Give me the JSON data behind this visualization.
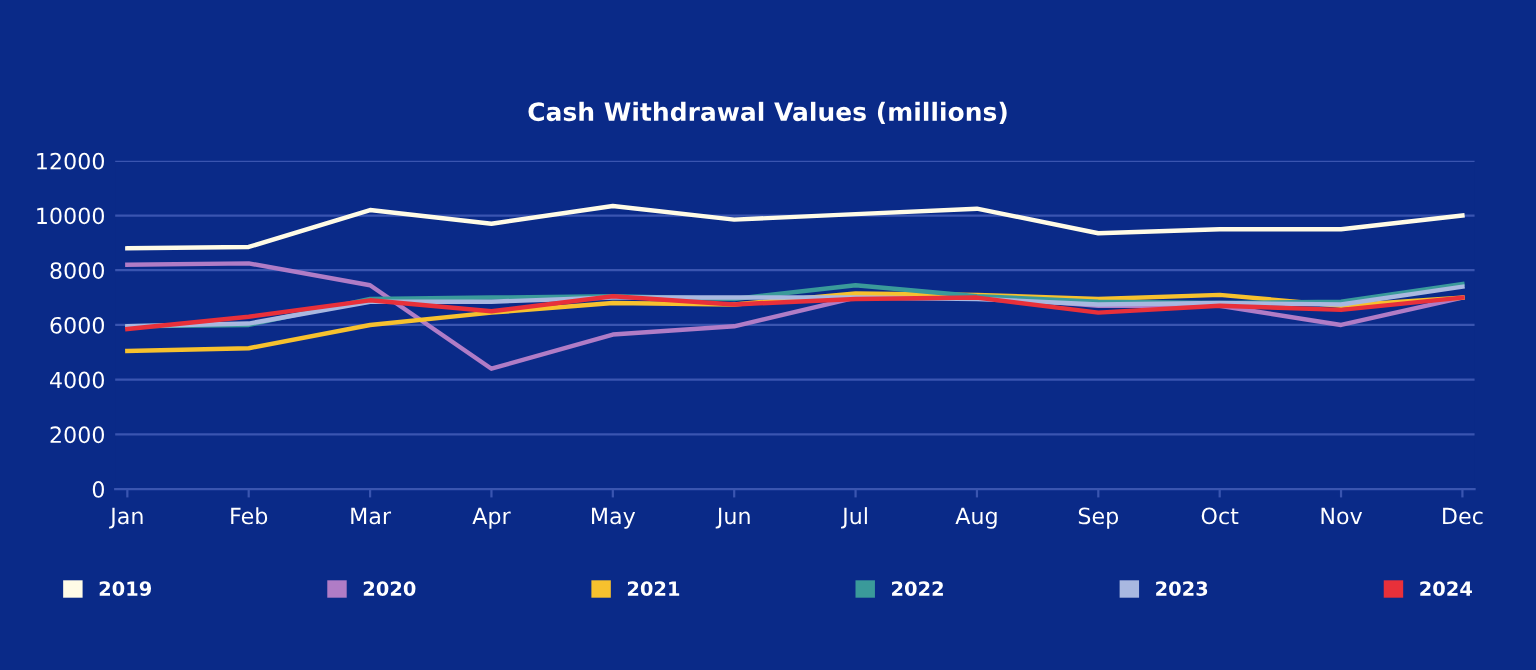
{
  "chart_data": {
    "type": "line",
    "title": "Cash Withdrawal Values (millions)",
    "categories": [
      "Jan",
      "Feb",
      "Mar",
      "Apr",
      "May",
      "Jun",
      "Jul",
      "Aug",
      "Sep",
      "Oct",
      "Nov",
      "Dec"
    ],
    "series": [
      {
        "name": "2019",
        "color": "#fffbe6",
        "values": [
          8800,
          8850,
          10200,
          9700,
          10350,
          9850,
          10050,
          10250,
          9350,
          9500,
          9500,
          10000
        ]
      },
      {
        "name": "2020",
        "color": "#b07cc6",
        "values": [
          8200,
          8250,
          7450,
          4400,
          5650,
          5950,
          7000,
          7050,
          6700,
          6700,
          6000,
          7000
        ]
      },
      {
        "name": "2021",
        "color": "#f7c12e",
        "values": [
          5050,
          5150,
          6000,
          6450,
          6800,
          6750,
          7150,
          7100,
          6950,
          7100,
          6700,
          7000
        ]
      },
      {
        "name": "2022",
        "color": "#3a9a9a",
        "values": [
          5950,
          6000,
          6950,
          7000,
          7050,
          6950,
          7450,
          7050,
          6850,
          6800,
          6850,
          7500
        ]
      },
      {
        "name": "2023",
        "color": "#a9b8e0",
        "values": [
          5950,
          6050,
          6850,
          6850,
          7000,
          7000,
          7000,
          6950,
          6750,
          6800,
          6750,
          7400
        ]
      },
      {
        "name": "2024",
        "color": "#e8303a",
        "values": [
          5850,
          6300,
          6900,
          6500,
          7050,
          6750,
          6950,
          7000,
          6450,
          6700,
          6550,
          7000
        ]
      }
    ],
    "ylim": [
      0,
      12000
    ],
    "yticks": [
      0,
      2000,
      4000,
      6000,
      8000,
      10000,
      12000
    ],
    "grid": "y",
    "legend": "bottom",
    "marker": "none",
    "line_style": "solid"
  }
}
